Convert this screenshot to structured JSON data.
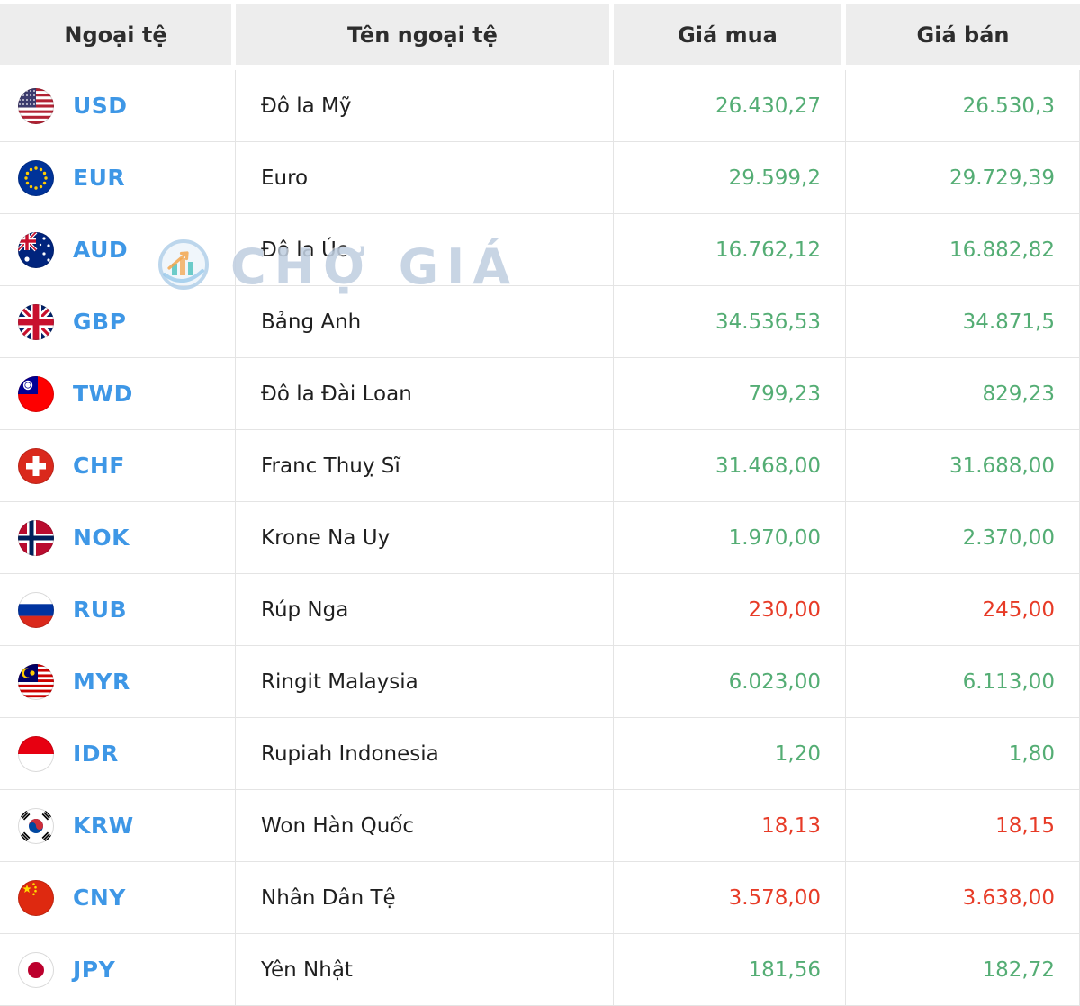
{
  "table": {
    "headers": [
      "Ngoại tệ",
      "Tên ngoại tệ",
      "Giá mua",
      "Giá bán"
    ],
    "rows": [
      {
        "code": "USD",
        "flag_icon": "usd-flag-icon",
        "name": "Đô la Mỹ",
        "buy": "26.430,27",
        "sell": "26.530,3",
        "trend": "up"
      },
      {
        "code": "EUR",
        "flag_icon": "eur-flag-icon",
        "name": "Euro",
        "buy": "29.599,2",
        "sell": "29.729,39",
        "trend": "up"
      },
      {
        "code": "AUD",
        "flag_icon": "aud-flag-icon",
        "name": "Đô la Úc",
        "buy": "16.762,12",
        "sell": "16.882,82",
        "trend": "up"
      },
      {
        "code": "GBP",
        "flag_icon": "gbp-flag-icon",
        "name": "Bảng Anh",
        "buy": "34.536,53",
        "sell": "34.871,5",
        "trend": "up"
      },
      {
        "code": "TWD",
        "flag_icon": "twd-flag-icon",
        "name": "Đô la Đài Loan",
        "buy": "799,23",
        "sell": "829,23",
        "trend": "up"
      },
      {
        "code": "CHF",
        "flag_icon": "chf-flag-icon",
        "name": "Franc Thuỵ Sĩ",
        "buy": "31.468,00",
        "sell": "31.688,00",
        "trend": "up"
      },
      {
        "code": "NOK",
        "flag_icon": "nok-flag-icon",
        "name": "Krone Na Uy",
        "buy": "1.970,00",
        "sell": "2.370,00",
        "trend": "up"
      },
      {
        "code": "RUB",
        "flag_icon": "rub-flag-icon",
        "name": "Rúp Nga",
        "buy": "230,00",
        "sell": "245,00",
        "trend": "down"
      },
      {
        "code": "MYR",
        "flag_icon": "myr-flag-icon",
        "name": "Ringit Malaysia",
        "buy": "6.023,00",
        "sell": "6.113,00",
        "trend": "up"
      },
      {
        "code": "IDR",
        "flag_icon": "idr-flag-icon",
        "name": "Rupiah Indonesia",
        "buy": "1,20",
        "sell": "1,80",
        "trend": "up"
      },
      {
        "code": "KRW",
        "flag_icon": "krw-flag-icon",
        "name": "Won Hàn Quốc",
        "buy": "18,13",
        "sell": "18,15",
        "trend": "down"
      },
      {
        "code": "CNY",
        "flag_icon": "cny-flag-icon",
        "name": "Nhân Dân Tệ",
        "buy": "3.578,00",
        "sell": "3.638,00",
        "trend": "down"
      },
      {
        "code": "JPY",
        "flag_icon": "jpy-flag-icon",
        "name": "Yên Nhật",
        "buy": "181,56",
        "sell": "182,72",
        "trend": "up"
      }
    ]
  },
  "watermark": {
    "text": "CHỢ GIÁ"
  },
  "colors": {
    "up": "#54ad74",
    "down": "#e73b27",
    "code_blue": "#3e97e6",
    "header_bg": "#ededed"
  }
}
